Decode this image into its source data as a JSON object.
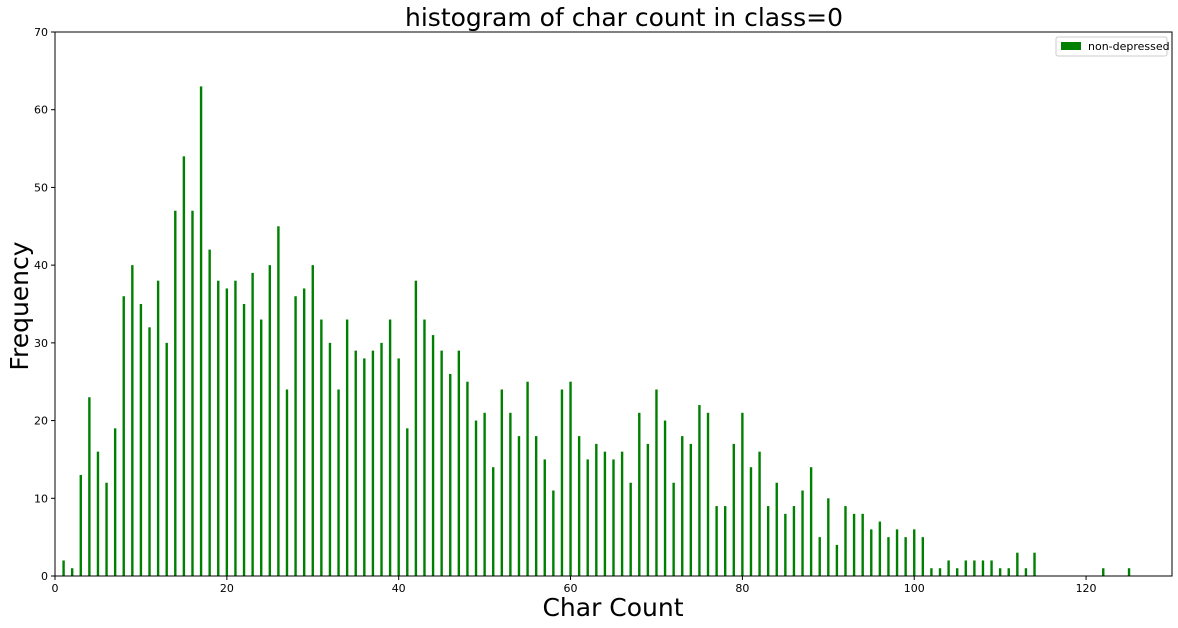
{
  "chart_data": {
    "type": "bar",
    "title": "histogram of char count in class=0",
    "xlabel": "Char Count",
    "ylabel": "Frequency",
    "xlim": [
      0,
      130
    ],
    "ylim": [
      0,
      70
    ],
    "xticks": [
      0,
      20,
      40,
      60,
      80,
      100,
      120
    ],
    "yticks": [
      0,
      10,
      20,
      30,
      40,
      50,
      60,
      70
    ],
    "grid": false,
    "legend_position": "top-right",
    "color": "#008000",
    "series": [
      {
        "name": "non-depressed",
        "x": [
          1,
          2,
          3,
          4,
          5,
          6,
          7,
          8,
          9,
          10,
          11,
          12,
          13,
          14,
          15,
          16,
          17,
          18,
          19,
          20,
          21,
          22,
          23,
          24,
          25,
          26,
          27,
          28,
          29,
          30,
          31,
          32,
          33,
          34,
          35,
          36,
          37,
          38,
          39,
          40,
          41,
          42,
          43,
          44,
          45,
          46,
          47,
          48,
          49,
          50,
          51,
          52,
          53,
          54,
          55,
          56,
          57,
          58,
          59,
          60,
          61,
          62,
          63,
          64,
          65,
          66,
          67,
          68,
          69,
          70,
          71,
          72,
          73,
          74,
          75,
          76,
          77,
          78,
          79,
          80,
          81,
          82,
          83,
          84,
          85,
          86,
          87,
          88,
          89,
          90,
          91,
          92,
          93,
          94,
          95,
          96,
          97,
          98,
          99,
          100,
          101,
          102,
          103,
          104,
          105,
          106,
          107,
          108,
          109,
          110,
          111,
          112,
          113,
          114,
          122,
          125
        ],
        "values": [
          2,
          1,
          13,
          23,
          16,
          12,
          19,
          36,
          40,
          35,
          32,
          38,
          30,
          47,
          54,
          47,
          63,
          42,
          38,
          37,
          38,
          35,
          39,
          33,
          40,
          45,
          24,
          36,
          37,
          40,
          33,
          30,
          24,
          33,
          29,
          28,
          29,
          30,
          33,
          28,
          19,
          38,
          33,
          31,
          29,
          26,
          29,
          25,
          20,
          21,
          14,
          24,
          21,
          18,
          25,
          18,
          15,
          11,
          24,
          25,
          18,
          15,
          17,
          16,
          15,
          16,
          12,
          21,
          17,
          24,
          20,
          12,
          18,
          17,
          22,
          21,
          9,
          9,
          17,
          21,
          14,
          16,
          9,
          12,
          8,
          9,
          11,
          14,
          5,
          10,
          4,
          9,
          8,
          8,
          6,
          7,
          5,
          6,
          5,
          6,
          5,
          1,
          1,
          2,
          1,
          2,
          2,
          2,
          2,
          1,
          1,
          3,
          1,
          3,
          1,
          1
        ]
      }
    ]
  }
}
